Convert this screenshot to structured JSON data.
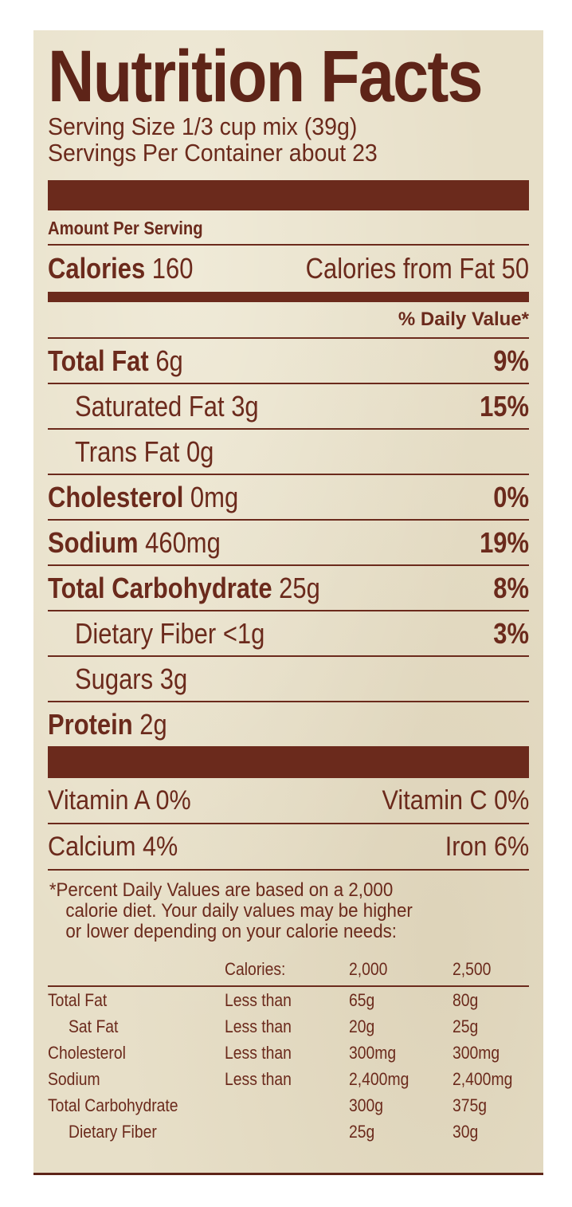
{
  "title": "Nutrition Facts",
  "serving_size": "Serving Size 1/3 cup mix (39g)",
  "servings_per_container": "Servings Per Container about 23",
  "amount_per_serving": "Amount Per Serving",
  "calories": {
    "label": "Calories",
    "value": "160",
    "from_fat": "Calories from Fat 50"
  },
  "daily_value_header": "% Daily Value*",
  "nutrients": [
    {
      "name": "Total Fat",
      "amount": "6g",
      "dv": "9%",
      "bold": true
    },
    {
      "name": "Saturated Fat",
      "amount": "3g",
      "dv": "15%",
      "bold": false
    },
    {
      "name": "Trans Fat",
      "amount": "0g",
      "dv": "",
      "bold": false
    },
    {
      "name": "Cholesterol",
      "amount": "0mg",
      "dv": "0%",
      "bold": true
    },
    {
      "name": "Sodium",
      "amount": "460mg",
      "dv": "19%",
      "bold": true
    },
    {
      "name": "Total Carbohydrate",
      "amount": "25g",
      "dv": "8%",
      "bold": true
    },
    {
      "name": "Dietary Fiber",
      "amount": "<1g",
      "dv": "3%",
      "bold": false
    },
    {
      "name": "Sugars",
      "amount": "3g",
      "dv": "",
      "bold": false
    },
    {
      "name": "Protein",
      "amount": "2g",
      "dv": "",
      "bold": true
    }
  ],
  "vitamins": [
    {
      "left": "Vitamin A 0%",
      "right": "Vitamin C 0%"
    },
    {
      "left": "Calcium 4%",
      "right": "Iron 6%"
    }
  ],
  "footnote": [
    "*Percent Daily Values are based on a 2,000",
    "calorie diet. Your daily values may be higher",
    "or lower depending on your calorie needs:"
  ],
  "dv_table": {
    "header": [
      "",
      "Calories:",
      "2,000",
      "2,500"
    ],
    "rows": [
      [
        "Total Fat",
        "Less than",
        "65g",
        "80g"
      ],
      [
        "Sat Fat",
        "Less than",
        "20g",
        "25g"
      ],
      [
        "Cholesterol",
        "Less than",
        "300mg",
        "300mg"
      ],
      [
        "Sodium",
        "Less than",
        "2,400mg",
        "2,400mg"
      ],
      [
        "Total Carbohydrate",
        "",
        "300g",
        "375g"
      ],
      [
        "Dietary Fiber",
        "",
        "25g",
        "30g"
      ]
    ]
  },
  "colors": {
    "ink": "#6b2a1c",
    "paper": "#e7dfc8"
  }
}
